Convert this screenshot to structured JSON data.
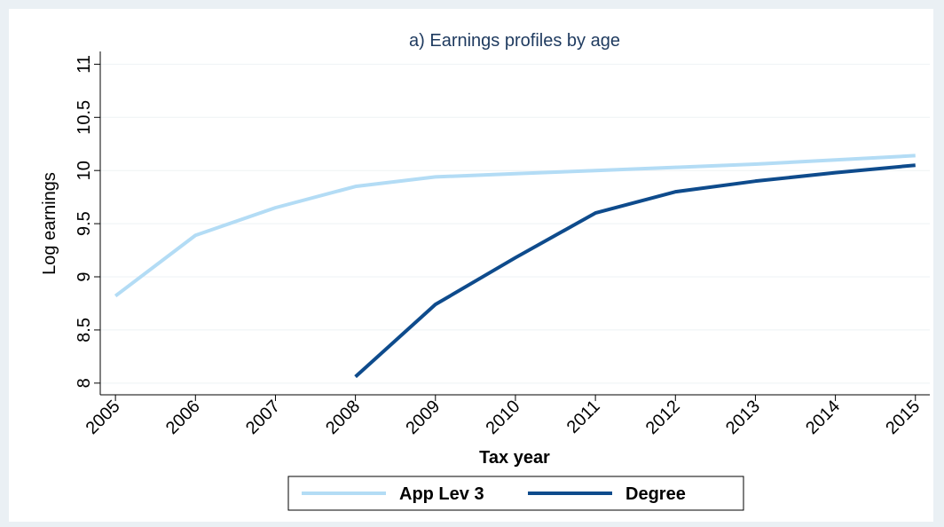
{
  "chart_data": {
    "type": "line",
    "title": "a) Earnings profiles by age",
    "x_label": "Tax year",
    "y_label": "Log earnings",
    "x": [
      2005,
      2006,
      2007,
      2008,
      2009,
      2010,
      2011,
      2012,
      2013,
      2014,
      2015
    ],
    "series": [
      {
        "name": "App Lev 3",
        "color": "#b3dcf5",
        "values": [
          8.82,
          9.39,
          9.65,
          9.85,
          9.94,
          9.97,
          10.0,
          10.03,
          10.06,
          10.1,
          10.14
        ]
      },
      {
        "name": "Degree",
        "color": "#0e4b8c",
        "values": [
          null,
          null,
          null,
          8.06,
          8.74,
          9.18,
          9.6,
          9.8,
          9.9,
          9.98,
          10.05
        ]
      }
    ],
    "xlim": [
      2004.81,
      2015.18
    ],
    "xticks": [
      2005,
      2006,
      2007,
      2008,
      2009,
      2010,
      2011,
      2012,
      2013,
      2014,
      2015
    ],
    "ylim": [
      7.89,
      11.12
    ],
    "yticks": [
      8,
      8.5,
      9,
      9.5,
      10,
      10.5,
      11
    ],
    "grid": true,
    "legend": "bottom"
  }
}
